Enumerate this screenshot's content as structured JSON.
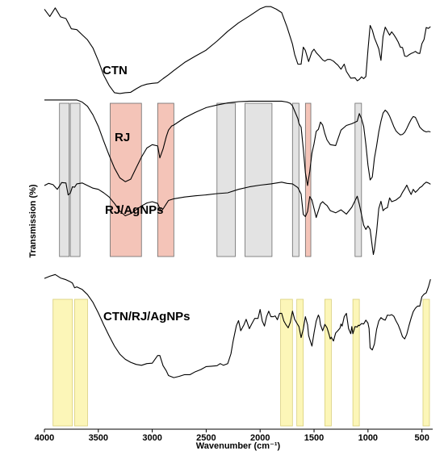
{
  "chart_data": {
    "type": "line",
    "title": "",
    "xlabel": "Wavenumber (cm⁻¹)",
    "ylabel": "Transmission (%)",
    "xlim": [
      4000,
      400
    ],
    "x_reversed": true,
    "xticks": [
      4000,
      3500,
      3000,
      2500,
      2000,
      1500,
      1000,
      500
    ],
    "xtick_labels": [
      "4000",
      "3500",
      "3000",
      "2500",
      "2000",
      "1500",
      "1000",
      "500"
    ],
    "ylim": [
      0,
      100
    ],
    "y_scale": "arbitrary offset transmission",
    "grid": false,
    "colors": {
      "line": "#000000",
      "gray_band_fill": "#e3e3e3",
      "gray_band_stroke": "#6b6b6b",
      "red_band_fill": "#f4c4b8",
      "red_band_stroke": "#6b6b6b",
      "yellow_band_fill": "#fcf6b8",
      "yellow_band_stroke": "#d8cf7a"
    },
    "series": [
      {
        "name": "CTN",
        "x": [
          4000,
          3950,
          3900,
          3850,
          3800,
          3750,
          3700,
          3650,
          3600,
          3550,
          3500,
          3450,
          3400,
          3350,
          3300,
          3250,
          3200,
          3150,
          3100,
          3050,
          3000,
          2950,
          2900,
          2850,
          2800,
          2700,
          2600,
          2500,
          2400,
          2300,
          2200,
          2100,
          2000,
          1950,
          1900,
          1850,
          1800,
          1750,
          1700,
          1680,
          1650,
          1620,
          1600,
          1580,
          1550,
          1520,
          1500,
          1480,
          1450,
          1420,
          1400,
          1375,
          1350,
          1320,
          1300,
          1280,
          1250,
          1220,
          1200,
          1160,
          1120,
          1100,
          1080,
          1060,
          1040,
          1020,
          1000,
          980,
          960,
          940,
          920,
          900,
          880,
          860,
          840,
          800,
          780,
          760,
          740,
          720,
          700,
          680,
          660,
          640,
          620,
          600,
          580,
          560,
          540,
          520,
          500,
          480,
          460,
          440,
          420
        ],
        "y": [
          98.6,
          96.9,
          98.9,
          96.8,
          96.4,
          94.0,
          93.8,
          92.6,
          91.4,
          89.5,
          86.5,
          83.1,
          80.7,
          79.0,
          78.8,
          79.0,
          79.1,
          79.9,
          80.6,
          81.0,
          81.2,
          81.3,
          82.3,
          83.2,
          84.2,
          86.1,
          87.6,
          89.0,
          91.1,
          93.4,
          95.4,
          97.0,
          98.7,
          99.2,
          99.2,
          98.6,
          97.8,
          94.4,
          90.4,
          88.0,
          85.7,
          85.7,
          89.7,
          88.9,
          86.3,
          88.6,
          89.2,
          88.4,
          87.6,
          86.7,
          86.4,
          86.8,
          86.8,
          86.4,
          85.9,
          85.5,
          84.5,
          85.7,
          84.0,
          82.4,
          82.5,
          81.8,
          82.1,
          82.7,
          82.3,
          82.8,
          89.0,
          94.8,
          93.7,
          91.9,
          90.6,
          89.3,
          86.6,
          92.2,
          94.4,
          92.5,
          93.3,
          92.6,
          91.8,
          90.9,
          89.7,
          89.6,
          87.6,
          87.5,
          87.9,
          88.2,
          88.4,
          88.7,
          88.3,
          88.2,
          90.5,
          91.5,
          94.3,
          94.1,
          94.5
        ]
      },
      {
        "name": "RJ",
        "x": [
          4000,
          3950,
          3900,
          3850,
          3800,
          3750,
          3700,
          3650,
          3600,
          3550,
          3500,
          3450,
          3400,
          3350,
          3300,
          3250,
          3200,
          3150,
          3100,
          3050,
          3000,
          2950,
          2930,
          2900,
          2870,
          2850,
          2820,
          2800,
          2700,
          2600,
          2500,
          2400,
          2300,
          2200,
          2100,
          2000,
          1900,
          1800,
          1750,
          1720,
          1700,
          1680,
          1650,
          1640,
          1620,
          1600,
          1580,
          1560,
          1540,
          1520,
          1500,
          1480,
          1460,
          1440,
          1420,
          1400,
          1380,
          1350,
          1300,
          1250,
          1200,
          1150,
          1100,
          1080,
          1060,
          1040,
          1020,
          1000,
          980,
          960,
          940,
          920,
          900,
          880,
          860,
          840,
          820,
          800,
          780,
          760,
          740,
          720,
          700,
          680,
          660,
          640,
          620,
          600,
          580,
          560,
          540,
          520,
          500,
          480,
          460,
          440,
          420
        ],
        "y": [
          77.3,
          77.3,
          77.3,
          77.3,
          77.3,
          77.3,
          77.3,
          76.8,
          75.8,
          73.8,
          71.1,
          67.6,
          64.3,
          61.3,
          59.0,
          58.1,
          58.7,
          61.3,
          63.9,
          66.0,
          66.8,
          66.5,
          63.7,
          65.8,
          68.7,
          70.2,
          71.2,
          71.4,
          73.1,
          74.4,
          75.5,
          76.1,
          76.6,
          76.9,
          77.0,
          77.0,
          77.0,
          77.0,
          76.8,
          76.5,
          75.9,
          74.7,
          72.9,
          71.8,
          70.9,
          65.8,
          60.2,
          57.2,
          60.5,
          64.8,
          67.0,
          69.9,
          70.4,
          72.1,
          71.4,
          69.4,
          67.9,
          66.8,
          66.6,
          70.2,
          71.3,
          71.7,
          72.3,
          74.1,
          72.9,
          71.1,
          66.9,
          62.0,
          58.5,
          59.2,
          63.6,
          66.5,
          69.8,
          72.3,
          74.2,
          74.9,
          74.4,
          73.5,
          72.3,
          71.0,
          70.0,
          69.5,
          69.1,
          69.2,
          69.7,
          70.6,
          71.7,
          72.7,
          73.4,
          73.2,
          72.1,
          70.9,
          70.4,
          70.0,
          69.8,
          69.9,
          69.8
        ]
      },
      {
        "name": "RJ/AgNPs",
        "x": [
          4000,
          3960,
          3920,
          3880,
          3840,
          3800,
          3780,
          3760,
          3740,
          3720,
          3700,
          3650,
          3600,
          3550,
          3500,
          3450,
          3400,
          3350,
          3300,
          3250,
          3200,
          3150,
          3100,
          3050,
          3000,
          2950,
          2920,
          2900,
          2870,
          2850,
          2800,
          2700,
          2600,
          2500,
          2400,
          2300,
          2200,
          2100,
          2000,
          1900,
          1800,
          1750,
          1700,
          1650,
          1620,
          1600,
          1580,
          1560,
          1540,
          1520,
          1500,
          1480,
          1460,
          1440,
          1420,
          1400,
          1380,
          1350,
          1300,
          1250,
          1200,
          1150,
          1100,
          1080,
          1060,
          1040,
          1020,
          1000,
          980,
          960,
          950,
          940,
          920,
          900,
          880,
          860,
          840,
          820,
          800,
          780,
          760,
          740,
          720,
          700,
          680,
          660,
          640,
          620,
          600,
          580,
          560,
          540,
          520,
          500,
          480,
          460,
          440,
          420
        ],
        "y": [
          57.2,
          57.7,
          57.4,
          56.3,
          57.9,
          57.8,
          55.0,
          55.4,
          56.9,
          56.8,
          57.6,
          57.8,
          57.2,
          56.6,
          56.3,
          55.5,
          54.5,
          53.0,
          51.2,
          50.1,
          50.6,
          51.5,
          52.4,
          53.1,
          53.4,
          53.0,
          51.2,
          51.7,
          52.9,
          53.7,
          54.1,
          54.5,
          54.8,
          55.0,
          55.3,
          55.5,
          56.3,
          56.9,
          57.3,
          57.6,
          58.0,
          57.7,
          57.6,
          56.7,
          55.2,
          50.4,
          49.9,
          51.1,
          54.6,
          53.8,
          51.8,
          49.7,
          51.3,
          52.9,
          53.4,
          52.9,
          52.5,
          51.3,
          50.8,
          51.5,
          50.5,
          52.1,
          54.7,
          52.8,
          50.4,
          47.9,
          46.9,
          47.7,
          46.9,
          42.8,
          41.0,
          42.2,
          46.3,
          51.8,
          53.5,
          51.3,
          51.8,
          52.0,
          54.3,
          53.4,
          53.6,
          53.8,
          54.2,
          54.6,
          55.6,
          56.4,
          57.3,
          56.1,
          55.1,
          56.3,
          55.6,
          56.1,
          56.7,
          57.0,
          57.6,
          58.0,
          57.8,
          57.5
        ]
      },
      {
        "name": "CTN/RJ/AgNPs",
        "x": [
          4000,
          3950,
          3900,
          3850,
          3800,
          3760,
          3740,
          3720,
          3700,
          3650,
          3600,
          3550,
          3500,
          3450,
          3400,
          3350,
          3300,
          3250,
          3200,
          3150,
          3100,
          3050,
          3000,
          2950,
          2930,
          2900,
          2870,
          2850,
          2800,
          2750,
          2700,
          2650,
          2600,
          2550,
          2500,
          2450,
          2400,
          2370,
          2340,
          2300,
          2270,
          2250,
          2220,
          2200,
          2180,
          2150,
          2130,
          2100,
          2080,
          2050,
          2020,
          2000,
          1980,
          1960,
          1940,
          1920,
          1900,
          1880,
          1860,
          1840,
          1820,
          1800,
          1780,
          1760,
          1740,
          1720,
          1700,
          1680,
          1660,
          1640,
          1620,
          1600,
          1590,
          1580,
          1560,
          1550,
          1540,
          1520,
          1500,
          1480,
          1460,
          1450,
          1440,
          1420,
          1400,
          1380,
          1360,
          1350,
          1340,
          1320,
          1300,
          1280,
          1260,
          1250,
          1240,
          1220,
          1200,
          1180,
          1160,
          1150,
          1140,
          1120,
          1100,
          1090,
          1080,
          1060,
          1040,
          1020,
          1000,
          990,
          980,
          960,
          940,
          920,
          900,
          880,
          860,
          840,
          820,
          800,
          780,
          760,
          740,
          720,
          700,
          680,
          660,
          640,
          620,
          600,
          580,
          560,
          540,
          520,
          500,
          480,
          460,
          440,
          420
        ],
        "y": [
          35.4,
          35.9,
          36.3,
          35.5,
          35.1,
          34.6,
          34.3,
          33.2,
          33.4,
          32.8,
          31.6,
          29.8,
          27.3,
          24.5,
          21.9,
          19.5,
          17.6,
          16.4,
          15.7,
          15.2,
          15.0,
          15.4,
          15.5,
          17.3,
          17.3,
          14.9,
          13.7,
          12.6,
          12.1,
          12.4,
          12.8,
          12.8,
          13.5,
          14.0,
          14.7,
          14.8,
          14.9,
          15.4,
          15.0,
          15.4,
          17.7,
          20.7,
          24.3,
          25.5,
          23.1,
          24.5,
          25.8,
          23.6,
          24.6,
          26.0,
          26.0,
          28.1,
          25.4,
          24.2,
          26.4,
          27.7,
          26.4,
          26.4,
          26.6,
          25.7,
          27.2,
          27.2,
          25.4,
          24.5,
          23.8,
          25.1,
          27.7,
          25.8,
          24.9,
          24.1,
          21.5,
          23.5,
          25.0,
          26.4,
          24.5,
          22.0,
          21.1,
          19.5,
          22.6,
          25.4,
          26.8,
          26.2,
          24.5,
          23.1,
          24.6,
          23.8,
          22.2,
          21.2,
          21.6,
          20.7,
          22.6,
          23.1,
          23.7,
          24.7,
          24.2,
          26.4,
          27.2,
          23.6,
          22.4,
          24.1,
          22.4,
          24.1,
          24.0,
          24.4,
          24.3,
          24.8,
          24.7,
          25.6,
          24.9,
          23.6,
          19.1,
          18.6,
          20.0,
          23.4,
          25.4,
          26.2,
          25.8,
          25.6,
          26.8,
          26.7,
          26.9,
          26.5,
          25.4,
          24.5,
          23.2,
          21.7,
          21.2,
          22.3,
          24.3,
          26.1,
          27.6,
          28.4,
          28.9,
          28.9,
          31.1,
          31.7,
          32.0,
          33.4,
          35.2
        ]
      }
    ],
    "bands": {
      "gray": [
        [
          3860,
          3770
        ],
        [
          3760,
          3670
        ],
        [
          2400,
          2230
        ],
        [
          2140,
          1890
        ],
        [
          1700,
          1640
        ],
        [
          1120,
          1060
        ]
      ],
      "red": [
        [
          3390,
          3100
        ],
        [
          2950,
          2800
        ],
        [
          1580,
          1530
        ]
      ],
      "yellow": [
        [
          3920,
          3740
        ],
        [
          3720,
          3600
        ],
        [
          1810,
          1700
        ],
        [
          1660,
          1600
        ],
        [
          1400,
          1340
        ],
        [
          1140,
          1080
        ],
        [
          490,
          430
        ]
      ]
    }
  }
}
